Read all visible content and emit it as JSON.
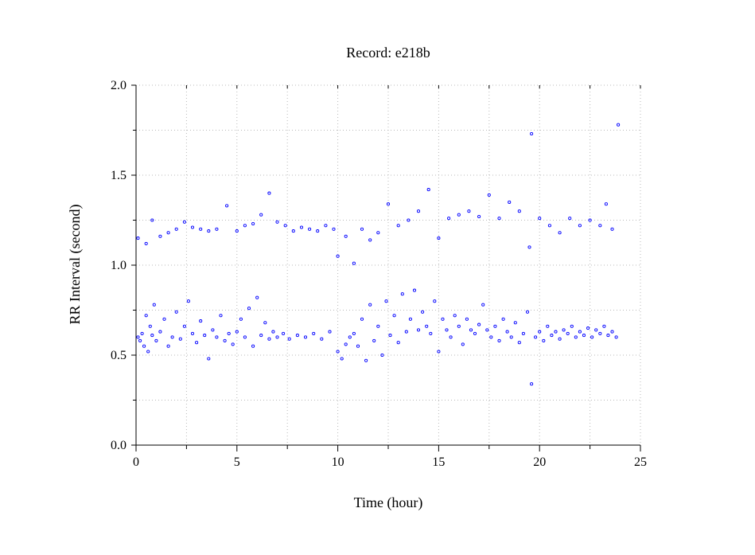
{
  "chart_data": {
    "type": "scatter",
    "title": "Record:  e218b",
    "xlabel": "Time (hour)",
    "ylabel": "RR Interval (second)",
    "xlim": [
      0,
      25
    ],
    "ylim": [
      0,
      2.0
    ],
    "x_ticks": [
      0,
      5,
      10,
      15,
      20,
      25
    ],
    "x_tick_labels": [
      "0",
      "5",
      "10",
      "15",
      "20",
      "25"
    ],
    "y_ticks": [
      0.0,
      0.5,
      1.0,
      1.5,
      2.0
    ],
    "y_tick_labels": [
      "0.0",
      "0.5",
      "1.0",
      "1.5",
      "2.0"
    ],
    "grid": true,
    "marker": "open-circle",
    "series_color": "#0000ff",
    "series": [
      {
        "points": [
          [
            0.1,
            0.6
          ],
          [
            0.2,
            0.58
          ],
          [
            0.3,
            0.62
          ],
          [
            0.4,
            0.55
          ],
          [
            0.5,
            0.72
          ],
          [
            0.6,
            0.52
          ],
          [
            0.7,
            0.66
          ],
          [
            0.8,
            0.61
          ],
          [
            0.9,
            0.78
          ],
          [
            1.0,
            0.58
          ],
          [
            1.2,
            0.63
          ],
          [
            1.4,
            0.7
          ],
          [
            1.6,
            0.55
          ],
          [
            1.8,
            0.6
          ],
          [
            2.0,
            0.74
          ],
          [
            2.2,
            0.59
          ],
          [
            2.4,
            0.66
          ],
          [
            2.6,
            0.8
          ],
          [
            2.8,
            0.62
          ],
          [
            3.0,
            0.57
          ],
          [
            3.2,
            0.69
          ],
          [
            3.4,
            0.61
          ],
          [
            3.6,
            0.48
          ],
          [
            3.8,
            0.64
          ],
          [
            4.0,
            0.6
          ],
          [
            4.2,
            0.72
          ],
          [
            4.4,
            0.58
          ],
          [
            4.6,
            0.62
          ],
          [
            4.8,
            0.56
          ],
          [
            5.0,
            0.63
          ],
          [
            5.2,
            0.7
          ],
          [
            5.4,
            0.6
          ],
          [
            5.6,
            0.76
          ],
          [
            5.8,
            0.55
          ],
          [
            6.0,
            0.82
          ],
          [
            6.2,
            0.61
          ],
          [
            6.4,
            0.68
          ],
          [
            6.6,
            0.59
          ],
          [
            6.8,
            0.63
          ],
          [
            7.0,
            0.6
          ],
          [
            7.3,
            0.62
          ],
          [
            7.6,
            0.59
          ],
          [
            8.0,
            0.61
          ],
          [
            8.4,
            0.6
          ],
          [
            8.8,
            0.62
          ],
          [
            9.2,
            0.59
          ],
          [
            9.6,
            0.63
          ],
          [
            10.0,
            0.52
          ],
          [
            10.2,
            0.48
          ],
          [
            10.4,
            0.56
          ],
          [
            10.6,
            0.6
          ],
          [
            10.8,
            0.62
          ],
          [
            11.0,
            0.55
          ],
          [
            11.2,
            0.7
          ],
          [
            11.4,
            0.47
          ],
          [
            11.6,
            0.78
          ],
          [
            11.8,
            0.58
          ],
          [
            12.0,
            0.66
          ],
          [
            12.2,
            0.5
          ],
          [
            12.4,
            0.8
          ],
          [
            12.6,
            0.61
          ],
          [
            12.8,
            0.72
          ],
          [
            13.0,
            0.57
          ],
          [
            13.2,
            0.84
          ],
          [
            13.4,
            0.63
          ],
          [
            13.6,
            0.7
          ],
          [
            13.8,
            0.86
          ],
          [
            14.0,
            0.64
          ],
          [
            14.2,
            0.74
          ],
          [
            14.4,
            0.66
          ],
          [
            14.6,
            0.62
          ],
          [
            14.8,
            0.8
          ],
          [
            15.0,
            0.52
          ],
          [
            15.2,
            0.7
          ],
          [
            15.4,
            0.64
          ],
          [
            15.6,
            0.6
          ],
          [
            15.8,
            0.72
          ],
          [
            16.0,
            0.66
          ],
          [
            16.2,
            0.56
          ],
          [
            16.4,
            0.7
          ],
          [
            16.6,
            0.64
          ],
          [
            16.8,
            0.62
          ],
          [
            17.0,
            0.67
          ],
          [
            17.2,
            0.78
          ],
          [
            17.4,
            0.64
          ],
          [
            17.6,
            0.6
          ],
          [
            17.8,
            0.66
          ],
          [
            18.0,
            0.58
          ],
          [
            18.2,
            0.7
          ],
          [
            18.4,
            0.63
          ],
          [
            18.6,
            0.6
          ],
          [
            18.8,
            0.68
          ],
          [
            19.0,
            0.57
          ],
          [
            19.2,
            0.62
          ],
          [
            19.4,
            0.74
          ],
          [
            19.6,
            0.34
          ],
          [
            19.8,
            0.6
          ],
          [
            20.0,
            0.63
          ],
          [
            20.2,
            0.58
          ],
          [
            20.4,
            0.66
          ],
          [
            20.6,
            0.61
          ],
          [
            20.8,
            0.63
          ],
          [
            21.0,
            0.59
          ],
          [
            21.2,
            0.64
          ],
          [
            21.4,
            0.62
          ],
          [
            21.6,
            0.66
          ],
          [
            21.8,
            0.6
          ],
          [
            22.0,
            0.63
          ],
          [
            22.2,
            0.61
          ],
          [
            22.4,
            0.65
          ],
          [
            22.6,
            0.6
          ],
          [
            22.8,
            0.64
          ],
          [
            23.0,
            0.62
          ],
          [
            23.2,
            0.66
          ],
          [
            23.4,
            0.61
          ],
          [
            23.6,
            0.63
          ],
          [
            23.8,
            0.6
          ],
          [
            0.1,
            1.15
          ],
          [
            0.5,
            1.12
          ],
          [
            0.8,
            1.25
          ],
          [
            1.2,
            1.16
          ],
          [
            1.6,
            1.18
          ],
          [
            2.0,
            1.2
          ],
          [
            2.4,
            1.24
          ],
          [
            2.8,
            1.21
          ],
          [
            3.2,
            1.2
          ],
          [
            3.6,
            1.19
          ],
          [
            4.0,
            1.2
          ],
          [
            4.5,
            1.33
          ],
          [
            5.0,
            1.19
          ],
          [
            5.4,
            1.22
          ],
          [
            5.8,
            1.23
          ],
          [
            6.2,
            1.28
          ],
          [
            6.6,
            1.4
          ],
          [
            7.0,
            1.24
          ],
          [
            7.4,
            1.22
          ],
          [
            7.8,
            1.19
          ],
          [
            8.2,
            1.21
          ],
          [
            8.6,
            1.2
          ],
          [
            9.0,
            1.19
          ],
          [
            9.4,
            1.22
          ],
          [
            9.8,
            1.2
          ],
          [
            10.0,
            1.05
          ],
          [
            10.4,
            1.16
          ],
          [
            10.8,
            1.01
          ],
          [
            11.2,
            1.2
          ],
          [
            11.6,
            1.14
          ],
          [
            12.0,
            1.18
          ],
          [
            12.5,
            1.34
          ],
          [
            13.0,
            1.22
          ],
          [
            13.5,
            1.25
          ],
          [
            14.0,
            1.3
          ],
          [
            14.5,
            1.42
          ],
          [
            15.0,
            1.15
          ],
          [
            15.5,
            1.26
          ],
          [
            16.0,
            1.28
          ],
          [
            16.5,
            1.3
          ],
          [
            17.0,
            1.27
          ],
          [
            17.5,
            1.39
          ],
          [
            18.0,
            1.26
          ],
          [
            18.5,
            1.35
          ],
          [
            19.0,
            1.3
          ],
          [
            19.5,
            1.1
          ],
          [
            19.6,
            1.73
          ],
          [
            20.0,
            1.26
          ],
          [
            20.5,
            1.22
          ],
          [
            21.0,
            1.18
          ],
          [
            21.5,
            1.26
          ],
          [
            22.0,
            1.22
          ],
          [
            22.5,
            1.25
          ],
          [
            23.0,
            1.22
          ],
          [
            23.3,
            1.34
          ],
          [
            23.6,
            1.2
          ],
          [
            23.9,
            1.78
          ]
        ]
      }
    ]
  }
}
